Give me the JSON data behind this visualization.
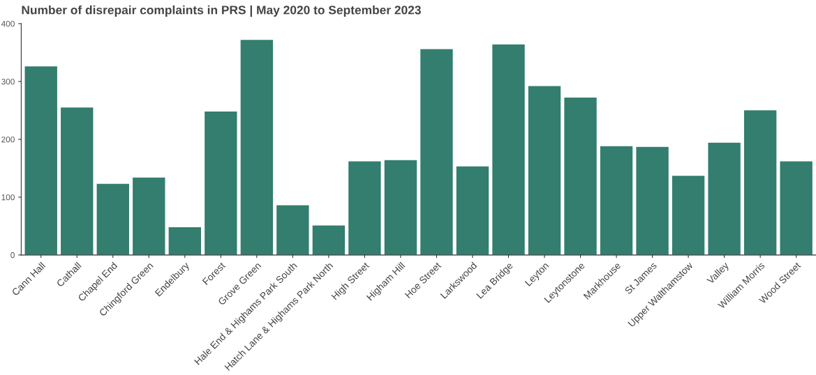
{
  "chart_data": {
    "type": "bar",
    "title": "Number of disrepair complaints in PRS | May 2020 to September 2023",
    "categories": [
      "Cann Hall",
      "Cathall",
      "Chapel End",
      "Chingford Green",
      "Endelbury",
      "Forest",
      "Grove Green",
      "Hale End & Highams Park South",
      "Hatch Lane & Highams Park North",
      "High Street",
      "Higham Hill",
      "Hoe Street",
      "Larkswood",
      "Lea Bridge",
      "Leyton",
      "Leytonstone",
      "Markhouse",
      "St James",
      "Upper Walthamstow",
      "Valley",
      "William Morris",
      "Wood Street"
    ],
    "values": [
      326,
      255,
      123,
      134,
      48,
      248,
      372,
      86,
      51,
      162,
      164,
      356,
      153,
      364,
      292,
      272,
      188,
      187,
      137,
      194,
      250,
      162
    ],
    "color": "#337e6e",
    "ylim": [
      0,
      400
    ],
    "yticks": [
      0,
      100,
      200,
      300,
      400
    ],
    "grid": false,
    "legend": false
  }
}
